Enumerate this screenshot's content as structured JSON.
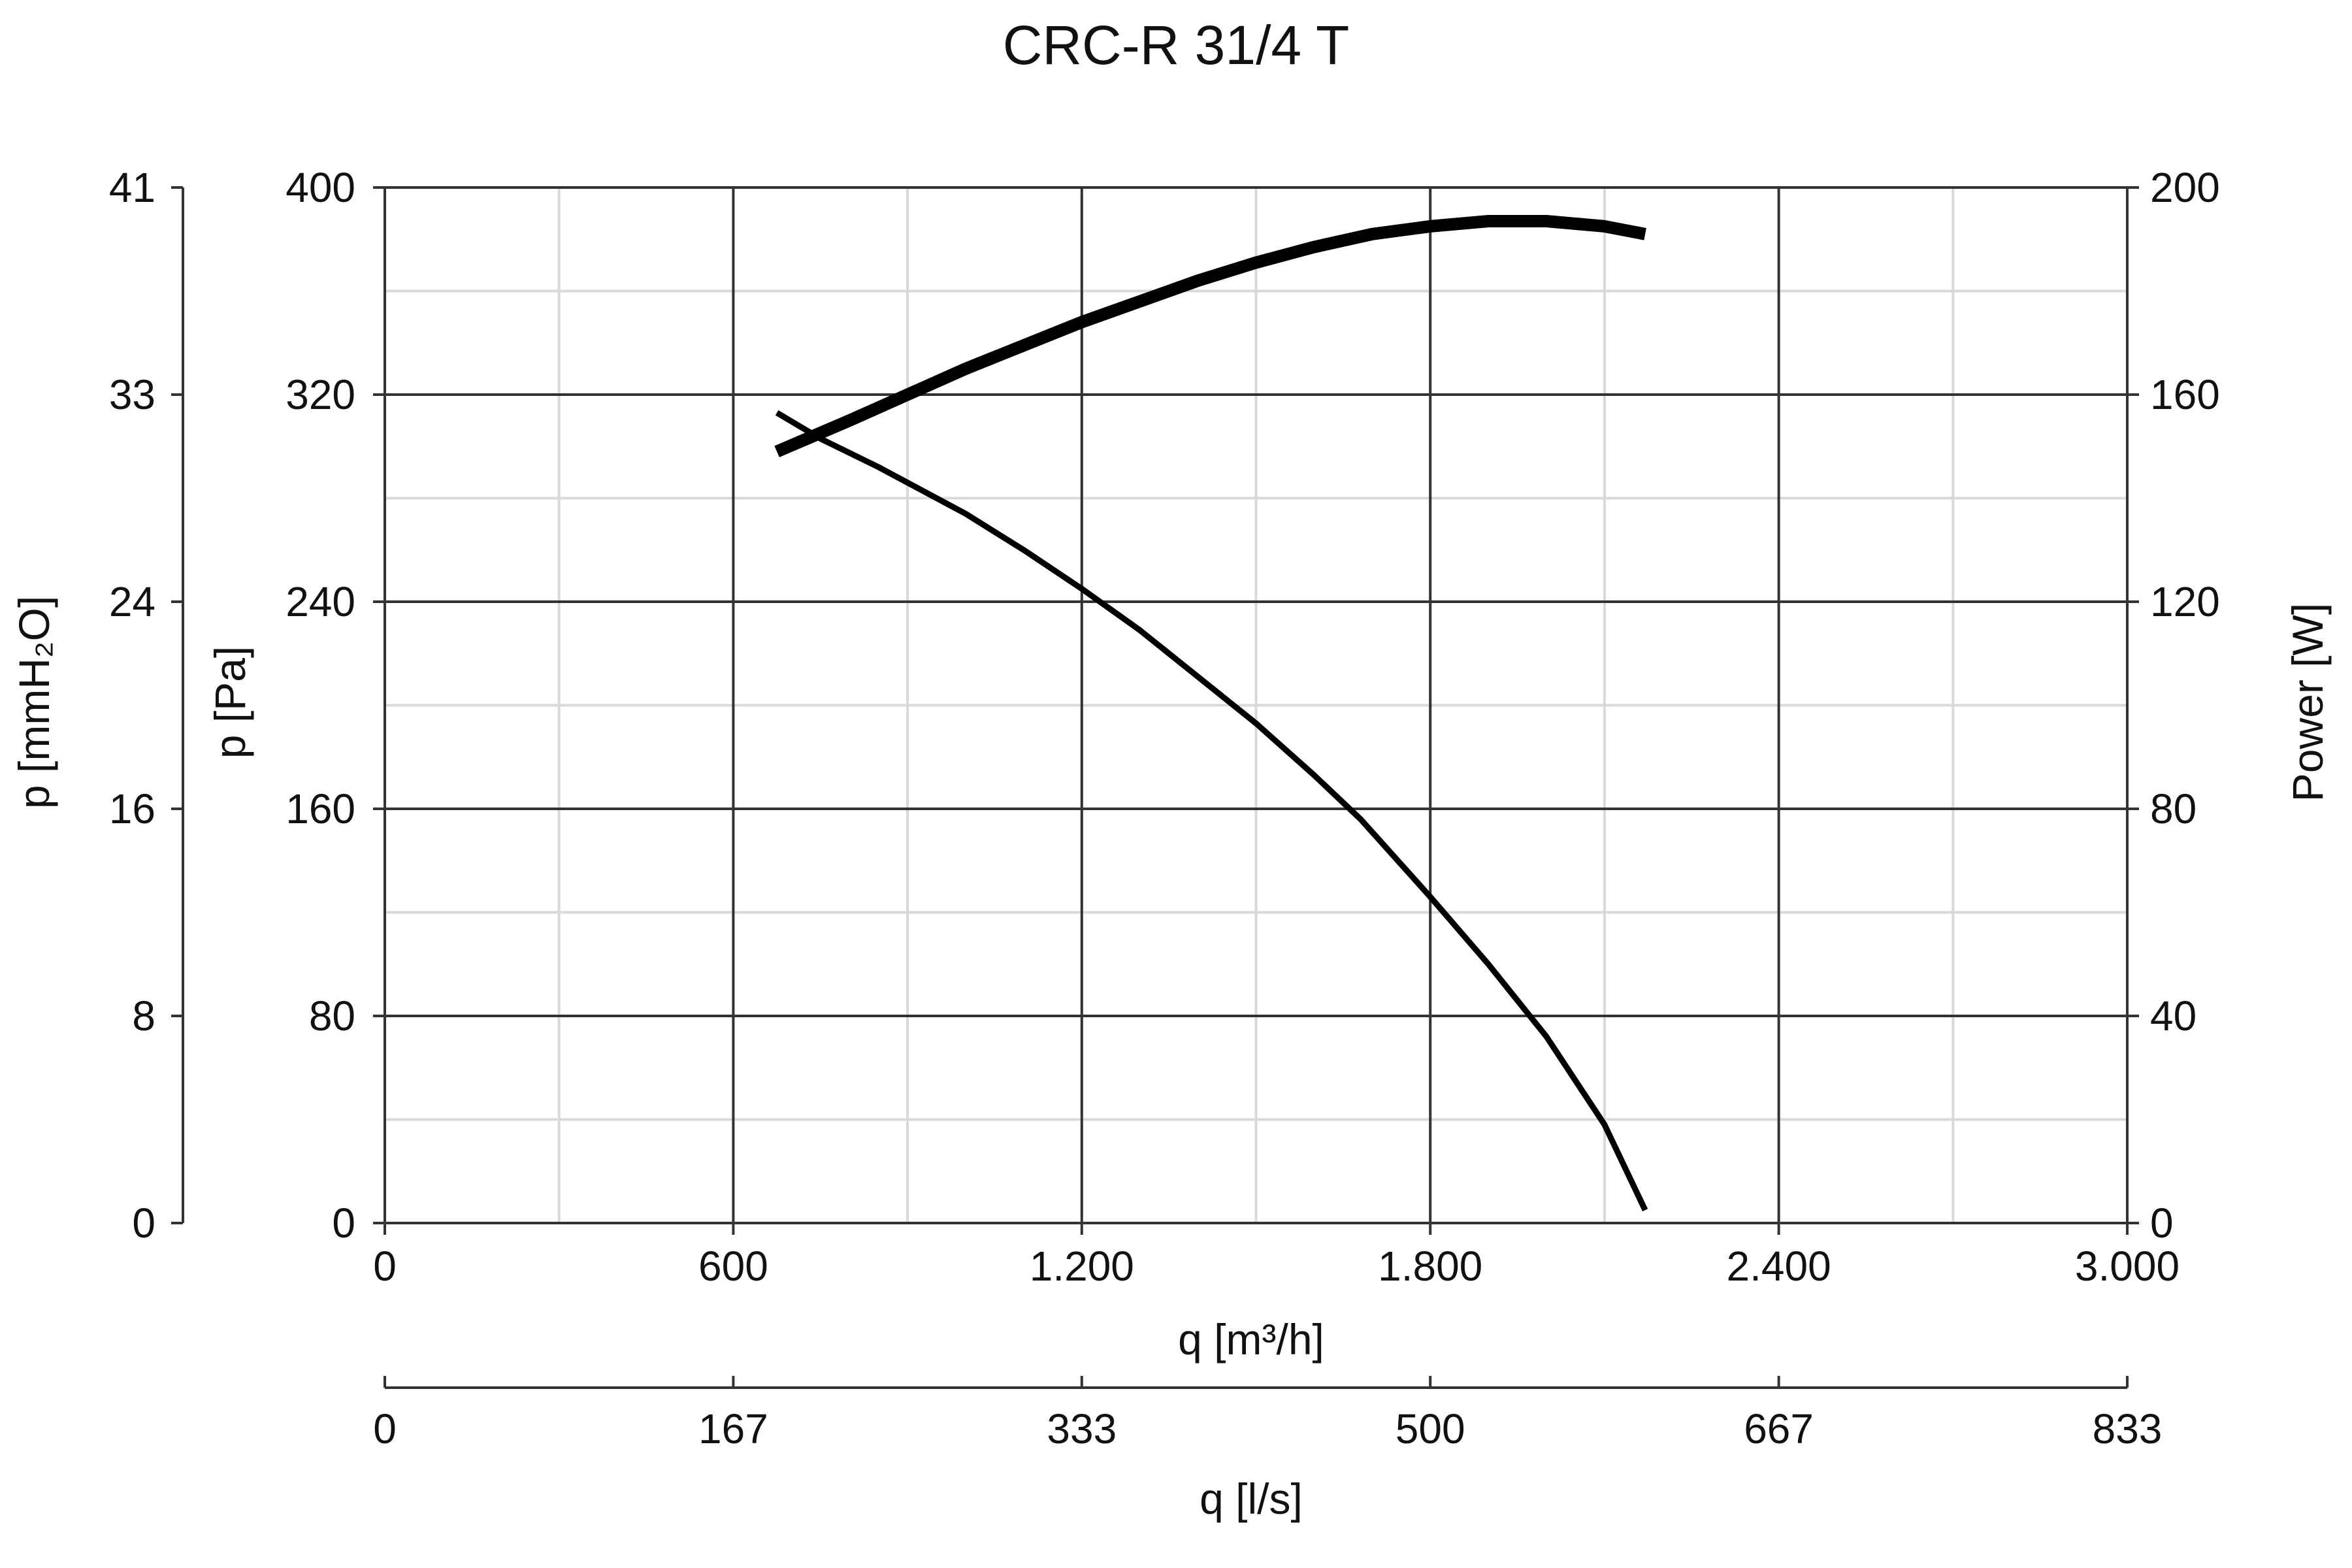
{
  "chart_data": {
    "type": "line",
    "title": "CRC-R 31/4 T",
    "xlabel": "q [m³/h]",
    "xlim": [
      0,
      3000
    ],
    "x_ticks": [
      0,
      600,
      1200,
      1800,
      2400,
      3000
    ],
    "x_tick_labels": [
      "0",
      "600",
      "1.200",
      "1.800",
      "2.400",
      "3.000"
    ],
    "x2label": "q [l/s]",
    "x2_tick_labels": [
      "0",
      "167",
      "333",
      "500",
      "667",
      "833"
    ],
    "ylabel": "p [Pa]",
    "ylim": [
      0,
      400
    ],
    "y_ticks": [
      0,
      80,
      160,
      240,
      320,
      400
    ],
    "y_tick_labels": [
      "0",
      "80",
      "160",
      "240",
      "320",
      "400"
    ],
    "y_outer_label": "p [mmH₂O]",
    "y_outer_tick_labels": [
      "0",
      "8",
      "16",
      "24",
      "33",
      "41"
    ],
    "y2label": "Power [W]",
    "y2lim": [
      0,
      200
    ],
    "y2_tick_labels": [
      "0",
      "40",
      "80",
      "120",
      "160",
      "200"
    ],
    "grid": true,
    "series": [
      {
        "axis": "pressure",
        "stroke": "thin",
        "x": [
          675,
          750,
          850,
          1000,
          1100,
          1200,
          1300,
          1400,
          1500,
          1600,
          1680,
          1800,
          1900,
          2000,
          2100,
          2170
        ],
        "y": [
          313,
          303,
          292,
          274,
          260,
          245,
          229,
          211,
          193,
          173,
          156,
          126,
          100,
          72,
          38,
          5
        ]
      },
      {
        "axis": "power",
        "stroke": "thick",
        "x": [
          675,
          800,
          900,
          1000,
          1100,
          1200,
          1300,
          1400,
          1500,
          1600,
          1700,
          1800,
          1900,
          2000,
          2100,
          2170
        ],
        "y": [
          149,
          155,
          160,
          165,
          169.5,
          174,
          178,
          182,
          185.5,
          188.5,
          191,
          192.5,
          193.5,
          193.5,
          192.5,
          191
        ]
      }
    ],
    "colors": {
      "curve": "#000000",
      "major_grid": "#333333",
      "minor_grid": "#d9d9d9",
      "axis": "#333333"
    }
  }
}
